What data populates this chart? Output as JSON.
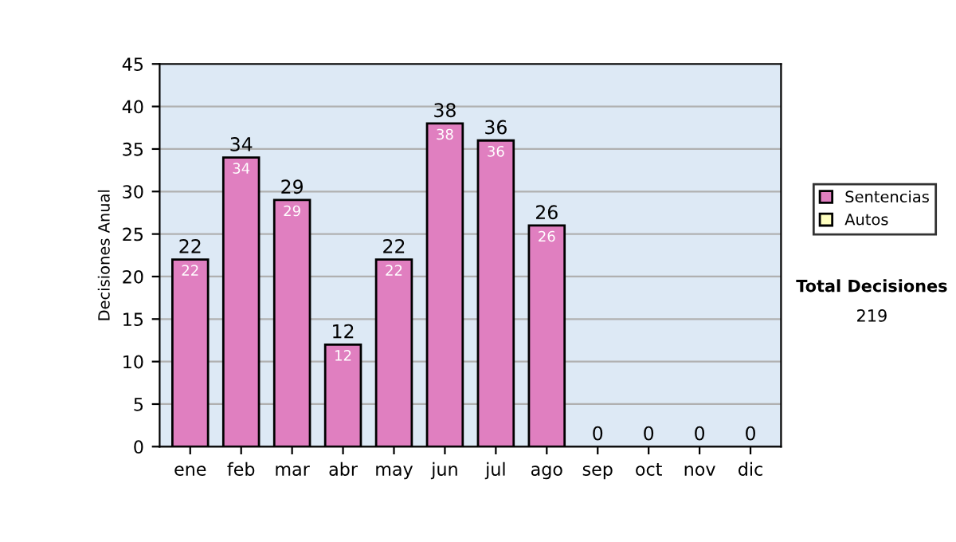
{
  "chart_data": {
    "type": "bar",
    "stacked": true,
    "ylabel": "Decisiones Anual",
    "categories": [
      "ene",
      "feb",
      "mar",
      "abr",
      "may",
      "jun",
      "jul",
      "ago",
      "sep",
      "oct",
      "nov",
      "dic"
    ],
    "series": [
      {
        "name": "Sentencias",
        "color": "#e07fc0",
        "values": [
          22,
          34,
          29,
          12,
          22,
          38,
          36,
          26,
          0,
          0,
          0,
          0
        ],
        "value_labels": [
          "22",
          "34",
          "29",
          "12",
          "22",
          "38",
          "36",
          "26",
          null,
          null,
          null,
          null
        ]
      },
      {
        "name": "Autos",
        "color": "#ffffc0",
        "values": [
          0,
          0,
          0,
          0,
          0,
          0,
          0,
          0,
          0,
          0,
          0,
          0
        ]
      }
    ],
    "totals": [
      "22",
      "34",
      "29",
      "12",
      "22",
      "38",
      "36",
      "26",
      "0",
      "0",
      "0",
      "0"
    ],
    "ylim": [
      0,
      45
    ],
    "yticks": [
      0,
      5,
      10,
      15,
      20,
      25,
      30,
      35,
      40,
      45
    ],
    "grid": "y",
    "legend": "right",
    "annotations": [
      "Total Decisiones",
      "219"
    ]
  }
}
